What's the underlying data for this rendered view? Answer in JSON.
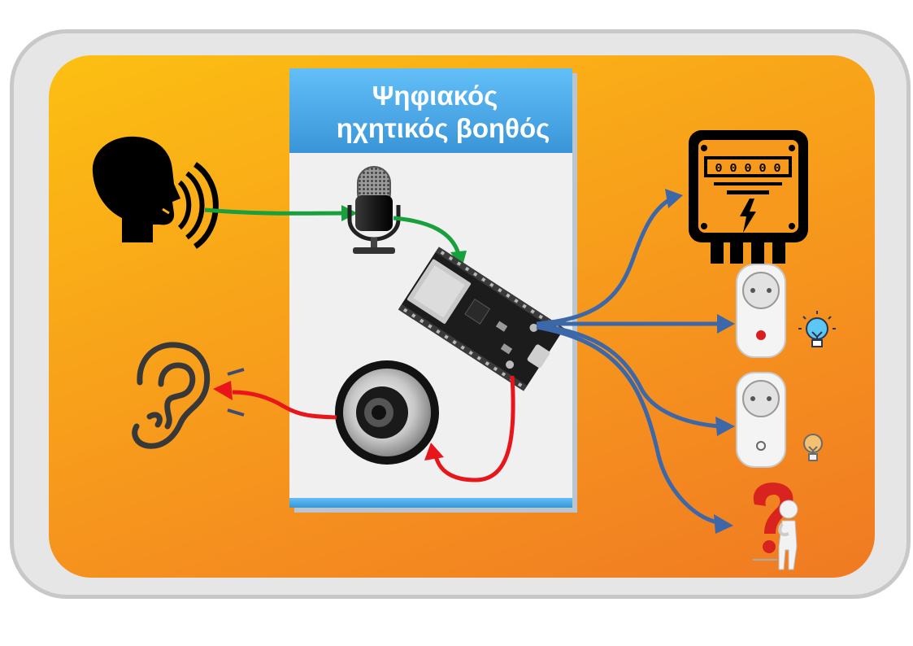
{
  "card": {
    "title_line1": "Ψηφιακός",
    "title_line2": "ηχητικός βοηθός"
  },
  "meter": {
    "digits": "0 0 0 0 0"
  },
  "colors": {
    "input_flow": "#17a03c",
    "output_flow": "#e8151b",
    "control_flow": "#3c67a8",
    "panel": "#f7991c",
    "header": "#4aa8e8"
  },
  "icons": [
    "speaking-person-icon",
    "microphone-icon",
    "esp32-board-icon",
    "speaker-icon",
    "ear-icon",
    "electric-meter-icon",
    "smart-plug-icon",
    "lightbulb-on-icon",
    "lightbulb-off-icon",
    "question-figure-icon"
  ]
}
